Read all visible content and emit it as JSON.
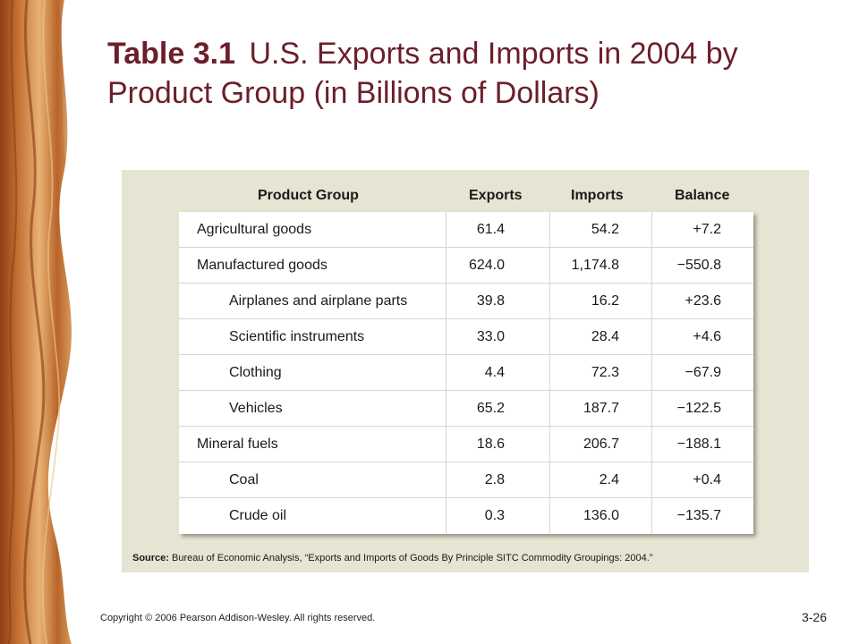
{
  "title": {
    "number": "Table 3.1",
    "text": "U.S. Exports and Imports in 2004 by Product Group (in Billions of Dollars)"
  },
  "table": {
    "headers": [
      "Product Group",
      "Exports",
      "Imports",
      "Balance"
    ],
    "rows": [
      {
        "name": "Agricultural goods",
        "indent": false,
        "exports": "61.4",
        "imports": "54.2",
        "balance": "+7.2"
      },
      {
        "name": "Manufactured goods",
        "indent": false,
        "exports": "624.0",
        "imports": "1,174.8",
        "balance": "−550.8"
      },
      {
        "name": "Airplanes and airplane parts",
        "indent": true,
        "exports": "39.8",
        "imports": "16.2",
        "balance": "+23.6"
      },
      {
        "name": "Scientific instruments",
        "indent": true,
        "exports": "33.0",
        "imports": "28.4",
        "balance": "+4.6"
      },
      {
        "name": "Clothing",
        "indent": true,
        "exports": "4.4",
        "imports": "72.3",
        "balance": "−67.9"
      },
      {
        "name": "Vehicles",
        "indent": true,
        "exports": "65.2",
        "imports": "187.7",
        "balance": "−122.5"
      },
      {
        "name": "Mineral fuels",
        "indent": false,
        "exports": "18.6",
        "imports": "206.7",
        "balance": "−188.1"
      },
      {
        "name": "Coal",
        "indent": true,
        "exports": "2.8",
        "imports": "2.4",
        "balance": "+0.4"
      },
      {
        "name": "Crude oil",
        "indent": true,
        "exports": "0.3",
        "imports": "136.0",
        "balance": "−135.7"
      }
    ]
  },
  "source": {
    "label": "Source:",
    "text": "Bureau of Economic Analysis, “Exports and Imports of Goods By Principle SITC Commodity Groupings: 2004.”"
  },
  "footer": {
    "copyright": "Copyright © 2006 Pearson Addison-Wesley. All rights reserved.",
    "page": "3-26"
  },
  "colors": {
    "title": "#6b1f2a",
    "panel": "#e6e4d2",
    "wood_dark": "#a5531f",
    "wood_light": "#e8b274"
  }
}
